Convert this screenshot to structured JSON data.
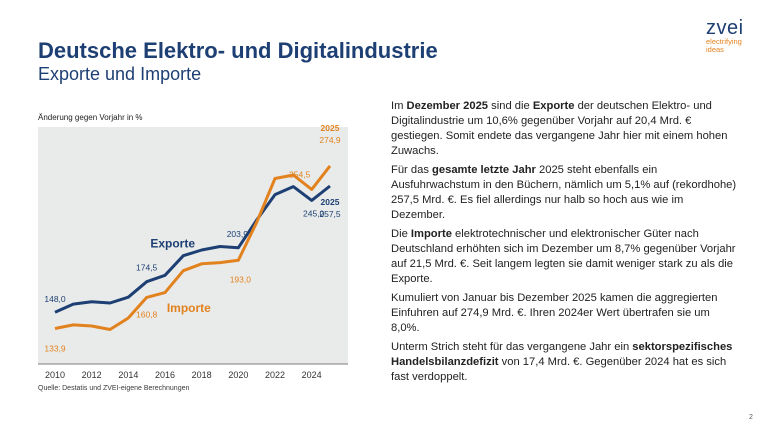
{
  "title": "Deutsche Elektro- und Digitalindustrie",
  "subtitle": "Exporte und Importe",
  "logo": {
    "word": "zvei",
    "tagline_1": "electrifying",
    "tagline_2": "ideas"
  },
  "chart_data": {
    "type": "line",
    "ylabel": "Änderung gegen Vorjahr in %",
    "x": [
      2010,
      2011,
      2012,
      2013,
      2014,
      2015,
      2016,
      2017,
      2018,
      2019,
      2020,
      2021,
      2022,
      2023,
      2024,
      2025
    ],
    "x_ticks": [
      "2010",
      "2012",
      "2014",
      "2016",
      "2018",
      "2020",
      "2022",
      "2024"
    ],
    "ylim": [
      110,
      300
    ],
    "series": [
      {
        "name": "Exporte",
        "color": "#1d3f73",
        "values": [
          148.0,
          155,
          157,
          156,
          161,
          174.5,
          180,
          197,
          202,
          205,
          203.9,
          228,
          250,
          257,
          245.0,
          257.5
        ]
      },
      {
        "name": "Importe",
        "color": "#e2821f",
        "values": [
          133.9,
          137,
          136,
          133,
          143,
          160.8,
          165,
          184,
          190,
          191,
          193.0,
          226,
          264,
          267,
          254.5,
          274.9
        ]
      }
    ],
    "annotations": [
      {
        "text": "148,0",
        "series": 0,
        "x": 2010
      },
      {
        "text": "174,5",
        "series": 0,
        "x": 2015
      },
      {
        "text": "203,9",
        "series": 0,
        "x": 2020
      },
      {
        "text": "245,0",
        "series": 0,
        "x": 2024
      },
      {
        "text": "2025",
        "series": 0,
        "x": 2025
      },
      {
        "text": "257,5",
        "series": 0,
        "x": 2025
      },
      {
        "text": "133,9",
        "series": 1,
        "x": 2010
      },
      {
        "text": "160,8",
        "series": 1,
        "x": 2015
      },
      {
        "text": "193,0",
        "series": 1,
        "x": 2020
      },
      {
        "text": "254,5",
        "series": 1,
        "x": 2024
      },
      {
        "text": "2025",
        "series": 1,
        "x": 2025
      },
      {
        "text": "274,9",
        "series": 1,
        "x": 2025
      }
    ],
    "grid": false,
    "legend": "inline"
  },
  "source": "Quelle: Destatis und ZVEI-eigene Berechnungen",
  "paragraphs": [
    [
      {
        "t": "Im "
      },
      {
        "t": "Dezember 2025",
        "b": true
      },
      {
        "t": " sind die "
      },
      {
        "t": "Exporte",
        "b": true
      },
      {
        "t": " der deutschen Elektro- und Digitalindustrie um 10,6% gegenüber Vorjahr auf 20,4 Mrd. € gestiegen. Somit endete das vergangene Jahr hier mit einem hohen Zuwachs."
      }
    ],
    [
      {
        "t": "Für das "
      },
      {
        "t": "gesamte letzte Jahr",
        "b": true
      },
      {
        "t": " 2025 steht ebenfalls ein Ausfuhrwachstum in den Büchern, nämlich um 5,1% auf (rekordhohe) 257,5 Mrd. €. Es fiel allerdings nur halb so hoch aus wie im Dezember."
      }
    ],
    [
      {
        "t": "Die "
      },
      {
        "t": "Importe",
        "b": true
      },
      {
        "t": " elektrotechnischer und elektronischer Güter nach Deutschland erhöhten sich im Dezember um 8,7% gegenüber Vorjahr auf 21,5 Mrd. €. Seit langem legten sie damit weniger stark zu als die Exporte."
      }
    ],
    [
      {
        "t": "Kumuliert von Januar bis Dezember 2025 kamen die aggregierten Einfuhren auf 274,9 Mrd. €. Ihren 2024er Wert übertrafen sie um 8,0%."
      }
    ],
    [
      {
        "t": "Unterm Strich steht für das vergangene Jahr ein "
      },
      {
        "t": "sektorspezifisches Handelsbilanzdefizit",
        "b": true
      },
      {
        "t": " von 17,4 Mrd. €. Gegenüber 2024 hat es sich fast verdoppelt."
      }
    ]
  ],
  "page_number": "2"
}
